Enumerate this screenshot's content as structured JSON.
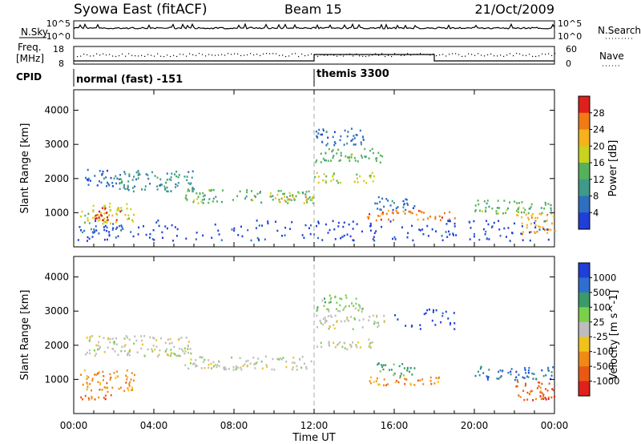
{
  "header": {
    "station": "Syowa East (fitACF)",
    "beam": "Beam 15",
    "date": "21/Oct/2009"
  },
  "noise_panel": {
    "left_label": "N.Sky",
    "right_label": "N.Search",
    "top_tick": "10^5",
    "bottom_tick": "10^0"
  },
  "freq_panel": {
    "left_label_line1": "Freq.",
    "left_label_line2": "[MHz]",
    "left_top_tick": "18",
    "left_bottom_tick": "8",
    "right_label": "Nave",
    "right_top_tick": "60",
    "right_bottom_tick": "0"
  },
  "cpid_panel": {
    "label": "CPID",
    "segments": [
      {
        "start_hour": 0,
        "end_hour": 12,
        "name": "normal (fast) -151"
      },
      {
        "start_hour": 12,
        "end_hour": 24,
        "name": "themis 3300"
      }
    ]
  },
  "x_axis": {
    "label": "Time UT",
    "ticks": [
      "00:00",
      "04:00",
      "08:00",
      "12:00",
      "16:00",
      "20:00",
      "00:00"
    ],
    "range_hours": [
      0,
      24
    ]
  },
  "chart_data": [
    {
      "type": "heatmap",
      "title": "",
      "quantity": "Power",
      "xlabel": "Time UT",
      "ylabel": "Slant Range [km]",
      "colorbar_label": "Power [dB]",
      "ylim": [
        0,
        4600
      ],
      "yticks": [
        1000,
        2000,
        3000,
        4000
      ],
      "colorbar": {
        "ticks": [
          "4",
          "8",
          "12",
          "16",
          "20",
          "24",
          "28"
        ],
        "colors": [
          "#1f3fd8",
          "#2e6fbf",
          "#3f9a8a",
          "#55b25a",
          "#c9d21e",
          "#f5b21c",
          "#f07a14",
          "#e0201a"
        ]
      },
      "regions": [
        {
          "t0": 0.3,
          "t1": 3.0,
          "r0": 700,
          "r1": 1300,
          "level": 4
        },
        {
          "t0": 1.0,
          "t1": 2.3,
          "r0": 800,
          "r1": 1200,
          "level": 7
        },
        {
          "t0": 0.2,
          "t1": 2.5,
          "r0": 400,
          "r1": 650,
          "level": 1
        },
        {
          "t0": 0.5,
          "t1": 2.5,
          "r0": 1800,
          "r1": 2300,
          "level": 1
        },
        {
          "t0": 2.0,
          "t1": 6.0,
          "r0": 1650,
          "r1": 2250,
          "level": 2
        },
        {
          "t0": 5.5,
          "t1": 12.0,
          "r0": 1300,
          "r1": 1700,
          "level": 3
        },
        {
          "t0": 10.0,
          "t1": 12.0,
          "r0": 1300,
          "r1": 1500,
          "level": 5
        },
        {
          "t0": 12.0,
          "t1": 15.0,
          "r0": 1900,
          "r1": 2200,
          "level": 4
        },
        {
          "t0": 12.0,
          "t1": 15.5,
          "r0": 2500,
          "r1": 2900,
          "level": 3
        },
        {
          "t0": 12.0,
          "t1": 14.5,
          "r0": 3000,
          "r1": 3500,
          "level": 1
        },
        {
          "t0": 14.5,
          "t1": 19.0,
          "r0": 800,
          "r1": 1100,
          "level": 6
        },
        {
          "t0": 15.0,
          "t1": 17.0,
          "r0": 1100,
          "r1": 1500,
          "level": 1
        },
        {
          "t0": 20.0,
          "t1": 24.0,
          "r0": 1000,
          "r1": 1400,
          "level": 3
        },
        {
          "t0": 22.0,
          "t1": 24.0,
          "r0": 400,
          "r1": 1000,
          "level": 5
        },
        {
          "t0": 0.0,
          "t1": 24.0,
          "r0": 200,
          "r1": 800,
          "level": 0
        }
      ]
    },
    {
      "type": "heatmap",
      "title": "",
      "quantity": "Velocity",
      "xlabel": "Time UT",
      "ylabel": "Slant Range [km]",
      "colorbar_label": "Velocity [m s^-1]",
      "ylim": [
        0,
        4600
      ],
      "yticks": [
        1000,
        2000,
        3000,
        4000
      ],
      "colorbar": {
        "ticks": [
          "1000",
          "500",
          "100",
          "25",
          "-25",
          "-100",
          "-500",
          "-1000"
        ],
        "colors": [
          "#1f3fd8",
          "#2f6fd0",
          "#3a9a6a",
          "#7ad04a",
          "#bdbdbd",
          "#f2c21c",
          "#f08a14",
          "#e85a14",
          "#e0201a"
        ]
      },
      "regions": [
        {
          "t0": 0.3,
          "t1": 3.0,
          "r0": 650,
          "r1": 1300,
          "level": 6
        },
        {
          "t0": 0.2,
          "t1": 2.0,
          "r0": 400,
          "r1": 600,
          "level": 7
        },
        {
          "t0": 0.5,
          "t1": 6.0,
          "r0": 1700,
          "r1": 2300,
          "level": 4
        },
        {
          "t0": 5.5,
          "t1": 12.0,
          "r0": 1300,
          "r1": 1700,
          "level": 4
        },
        {
          "t0": 12.0,
          "t1": 15.0,
          "r0": 1900,
          "r1": 2200,
          "level": 4
        },
        {
          "t0": 12.0,
          "t1": 15.5,
          "r0": 2500,
          "r1": 2900,
          "level": 4
        },
        {
          "t0": 12.0,
          "t1": 14.5,
          "r0": 3000,
          "r1": 3500,
          "level": 3
        },
        {
          "t0": 14.5,
          "t1": 18.5,
          "r0": 850,
          "r1": 1100,
          "level": 6
        },
        {
          "t0": 15.0,
          "t1": 17.0,
          "r0": 1100,
          "r1": 1500,
          "level": 2
        },
        {
          "t0": 20.0,
          "t1": 24.0,
          "r0": 1000,
          "r1": 1400,
          "level": 1
        },
        {
          "t0": 22.0,
          "t1": 24.0,
          "r0": 400,
          "r1": 1000,
          "level": 7
        },
        {
          "t0": 16.0,
          "t1": 19.0,
          "r0": 2500,
          "r1": 3100,
          "level": 0
        }
      ]
    }
  ]
}
